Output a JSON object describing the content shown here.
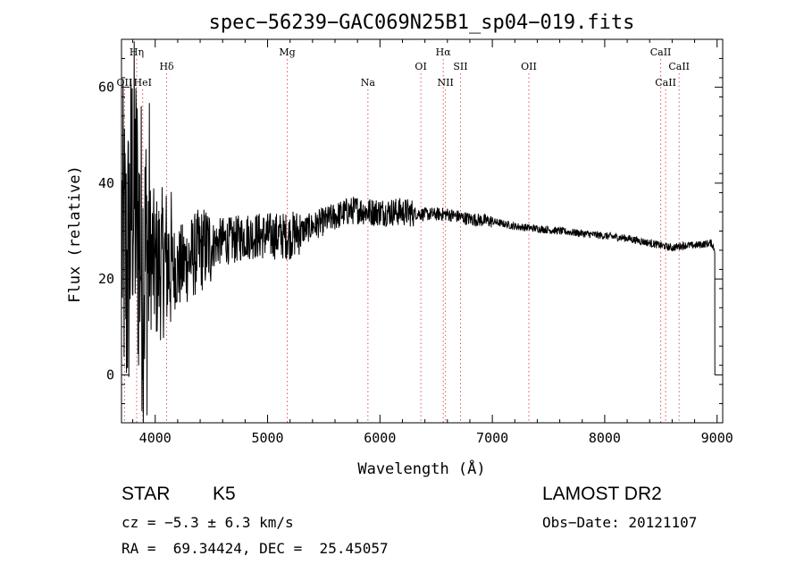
{
  "chart_data": {
    "type": "line",
    "title": "spec−56239−GAC069N25B1_sp04−019.fits",
    "xlabel": "Wavelength (Å)",
    "ylabel": "Flux (relative)",
    "xlim": [
      3700,
      9050
    ],
    "ylim": [
      -10,
      70
    ],
    "xticks": [
      4000,
      5000,
      6000,
      7000,
      8000,
      9000
    ],
    "yticks": [
      0,
      20,
      40,
      60
    ],
    "grid": false,
    "spectrum_anchors": [
      [
        3705,
        30
      ],
      [
        3750,
        20
      ],
      [
        3800,
        40
      ],
      [
        3850,
        30
      ],
      [
        3900,
        22
      ],
      [
        3950,
        26
      ],
      [
        4000,
        22
      ],
      [
        4100,
        24
      ],
      [
        4200,
        22
      ],
      [
        4300,
        24
      ],
      [
        4400,
        26
      ],
      [
        4500,
        27
      ],
      [
        4600,
        28
      ],
      [
        4700,
        28
      ],
      [
        4800,
        29
      ],
      [
        4900,
        29
      ],
      [
        5000,
        29
      ],
      [
        5100,
        29
      ],
      [
        5200,
        29
      ],
      [
        5300,
        30
      ],
      [
        5400,
        31
      ],
      [
        5500,
        32
      ],
      [
        5600,
        33
      ],
      [
        5700,
        34
      ],
      [
        5800,
        34.5
      ],
      [
        5900,
        34
      ],
      [
        6000,
        34
      ],
      [
        6200,
        34
      ],
      [
        6400,
        33.5
      ],
      [
        6600,
        33.5
      ],
      [
        6800,
        32.5
      ],
      [
        7000,
        32
      ],
      [
        7200,
        31
      ],
      [
        7400,
        30.5
      ],
      [
        7600,
        30
      ],
      [
        7800,
        29.5
      ],
      [
        8000,
        29
      ],
      [
        8200,
        28.5
      ],
      [
        8400,
        27.5
      ],
      [
        8500,
        27
      ],
      [
        8600,
        26.5
      ],
      [
        8700,
        27
      ],
      [
        8800,
        27
      ],
      [
        8950,
        27.5
      ],
      [
        8980,
        26
      ]
    ],
    "lines": [
      {
        "name": "OII",
        "wavelength": 3727,
        "tier": 3
      },
      {
        "name": "Hη",
        "wavelength": 3835,
        "tier": 1
      },
      {
        "name": "HeI",
        "wavelength": 3889,
        "tier": 3
      },
      {
        "name": "Hδ",
        "wavelength": 4102,
        "tier": 2
      },
      {
        "name": "Mg",
        "wavelength": 5175,
        "tier": 1
      },
      {
        "name": "Na",
        "wavelength": 5893,
        "tier": 3
      },
      {
        "name": "OI",
        "wavelength": 6364,
        "tier": 2
      },
      {
        "name": "Hα",
        "wavelength": 6563,
        "tier": 1
      },
      {
        "name": "NII",
        "wavelength": 6583,
        "tier": 3
      },
      {
        "name": "SII",
        "wavelength": 6717,
        "tier": 2
      },
      {
        "name": "OII",
        "wavelength": 7325,
        "tier": 2
      },
      {
        "name": "CaII",
        "wavelength": 8498,
        "tier": 1
      },
      {
        "name": "CaII",
        "wavelength": 8542,
        "tier": 3
      },
      {
        "name": "CaII",
        "wavelength": 8662,
        "tier": 2
      }
    ]
  },
  "info": {
    "object_class": "STAR",
    "subclass": "K5",
    "survey": "LAMOST DR2",
    "redshift_text": "cz = −5.3 ± 6.3 km/s",
    "obs_date_text": "Obs−Date: 20121107",
    "coords_text": "RA =  69.34424, DEC =  25.45057"
  }
}
